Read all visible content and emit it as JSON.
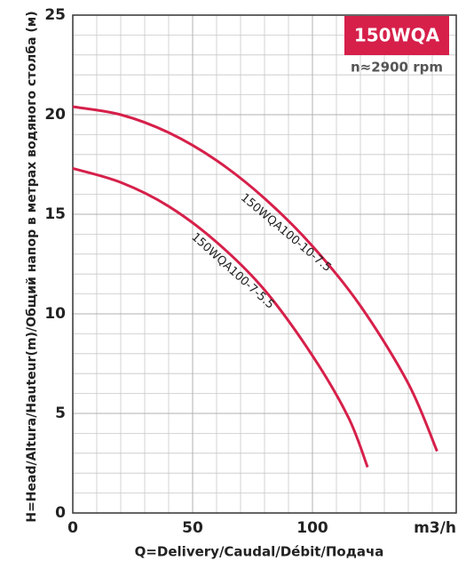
{
  "chart_data": {
    "type": "line",
    "title": "150WQA",
    "subtitle": "n≈2900 rpm",
    "x_label": "Q=Delivery/Caudal/Débit/Подача",
    "x_unit": "m3/h",
    "y_label": "H=Head/Altura/Hauteur(m)/Общий напор в метрах водяного столба (м)",
    "xlim": [
      0,
      160
    ],
    "xticks": [
      0,
      50,
      100
    ],
    "ylim": [
      0,
      25
    ],
    "yticks": [
      0,
      5,
      10,
      15,
      20,
      25
    ],
    "grid": true,
    "series": [
      {
        "name": "150WQA100-10-7.5",
        "color": "#d6204a",
        "x": [
          0,
          20,
          40,
          60,
          80,
          100,
          120,
          140,
          152
        ],
        "values": [
          20.4,
          20.0,
          19.1,
          17.7,
          15.8,
          13.4,
          10.4,
          6.5,
          3.1
        ]
      },
      {
        "name": "150WQA100-7-5.5",
        "color": "#d6204a",
        "x": [
          0,
          20,
          40,
          60,
          80,
          100,
          115,
          123
        ],
        "values": [
          17.3,
          16.6,
          15.4,
          13.6,
          11.2,
          7.9,
          4.8,
          2.3
        ]
      }
    ]
  }
}
